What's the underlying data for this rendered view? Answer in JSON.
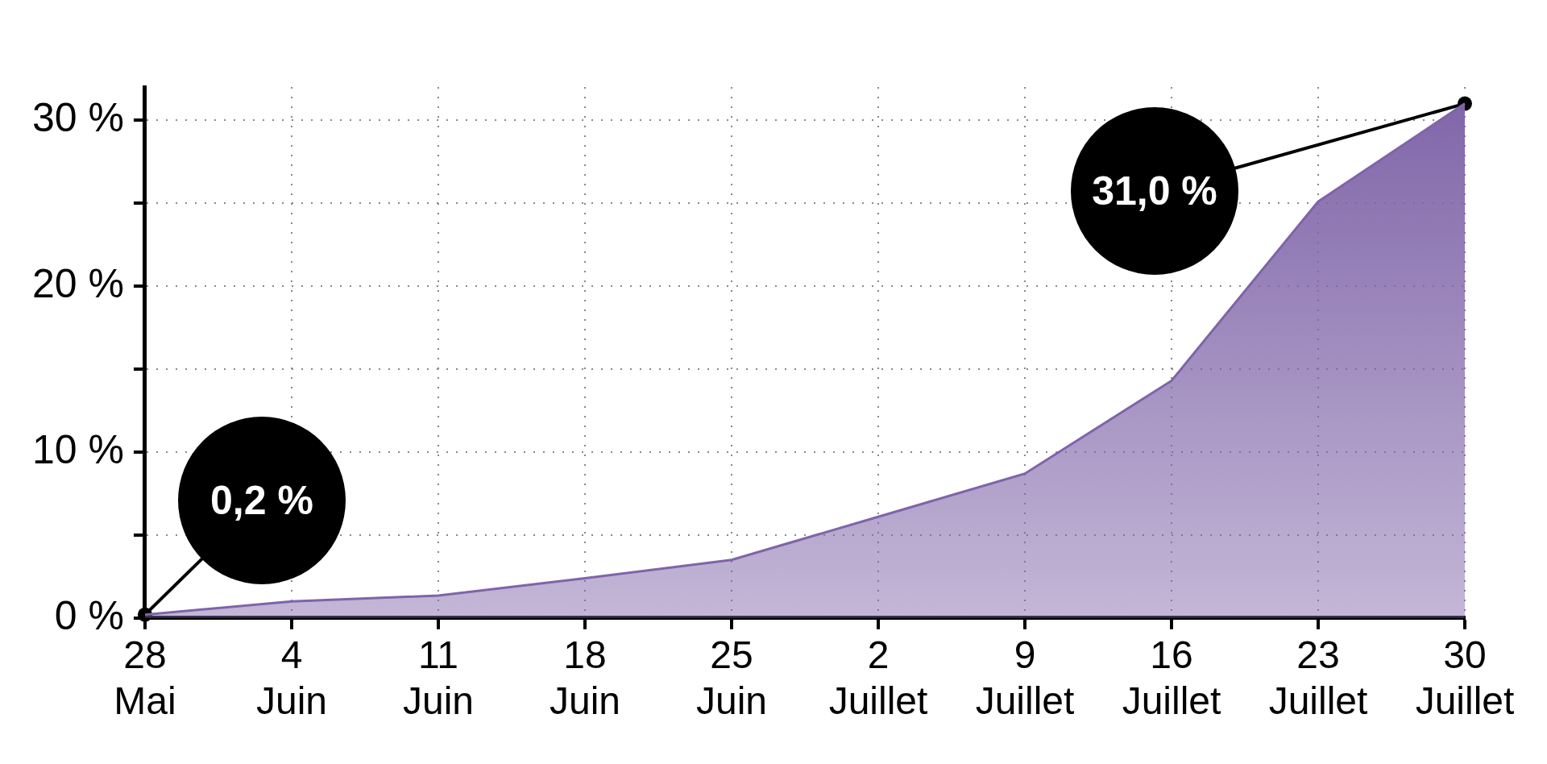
{
  "chart_data": {
    "type": "area",
    "categories": [
      "28\nMai",
      "4\nJuin",
      "11\nJuin",
      "18\nJuin",
      "25\nJuin",
      "2\nJuillet",
      "9\nJuillet",
      "16\nJuillet",
      "23\nJuillet",
      "30\nJuillet"
    ],
    "series": [
      {
        "color": "#7f64a8",
        "values": [
          0.2,
          1.0,
          1.35,
          2.4,
          3.5,
          6.1,
          8.7,
          14.3,
          25.1,
          31.0
        ]
      }
    ],
    "ylim": [
      0,
      32
    ],
    "yticks": [
      {
        "value": 0,
        "label": "0 %"
      },
      {
        "value": 5,
        "label": null
      },
      {
        "value": 10,
        "label": "10 %"
      },
      {
        "value": 15,
        "label": null
      },
      {
        "value": 20,
        "label": "20 %"
      },
      {
        "value": 25,
        "label": null
      },
      {
        "value": 30,
        "label": "30 %"
      }
    ],
    "grid": true,
    "legend": false,
    "annotations": [
      {
        "text": "0,2 %",
        "x": "28\nMai",
        "y": 0.2
      },
      {
        "text": "31,0 %",
        "x": "30\nJuillet",
        "y": 31.0
      }
    ]
  }
}
